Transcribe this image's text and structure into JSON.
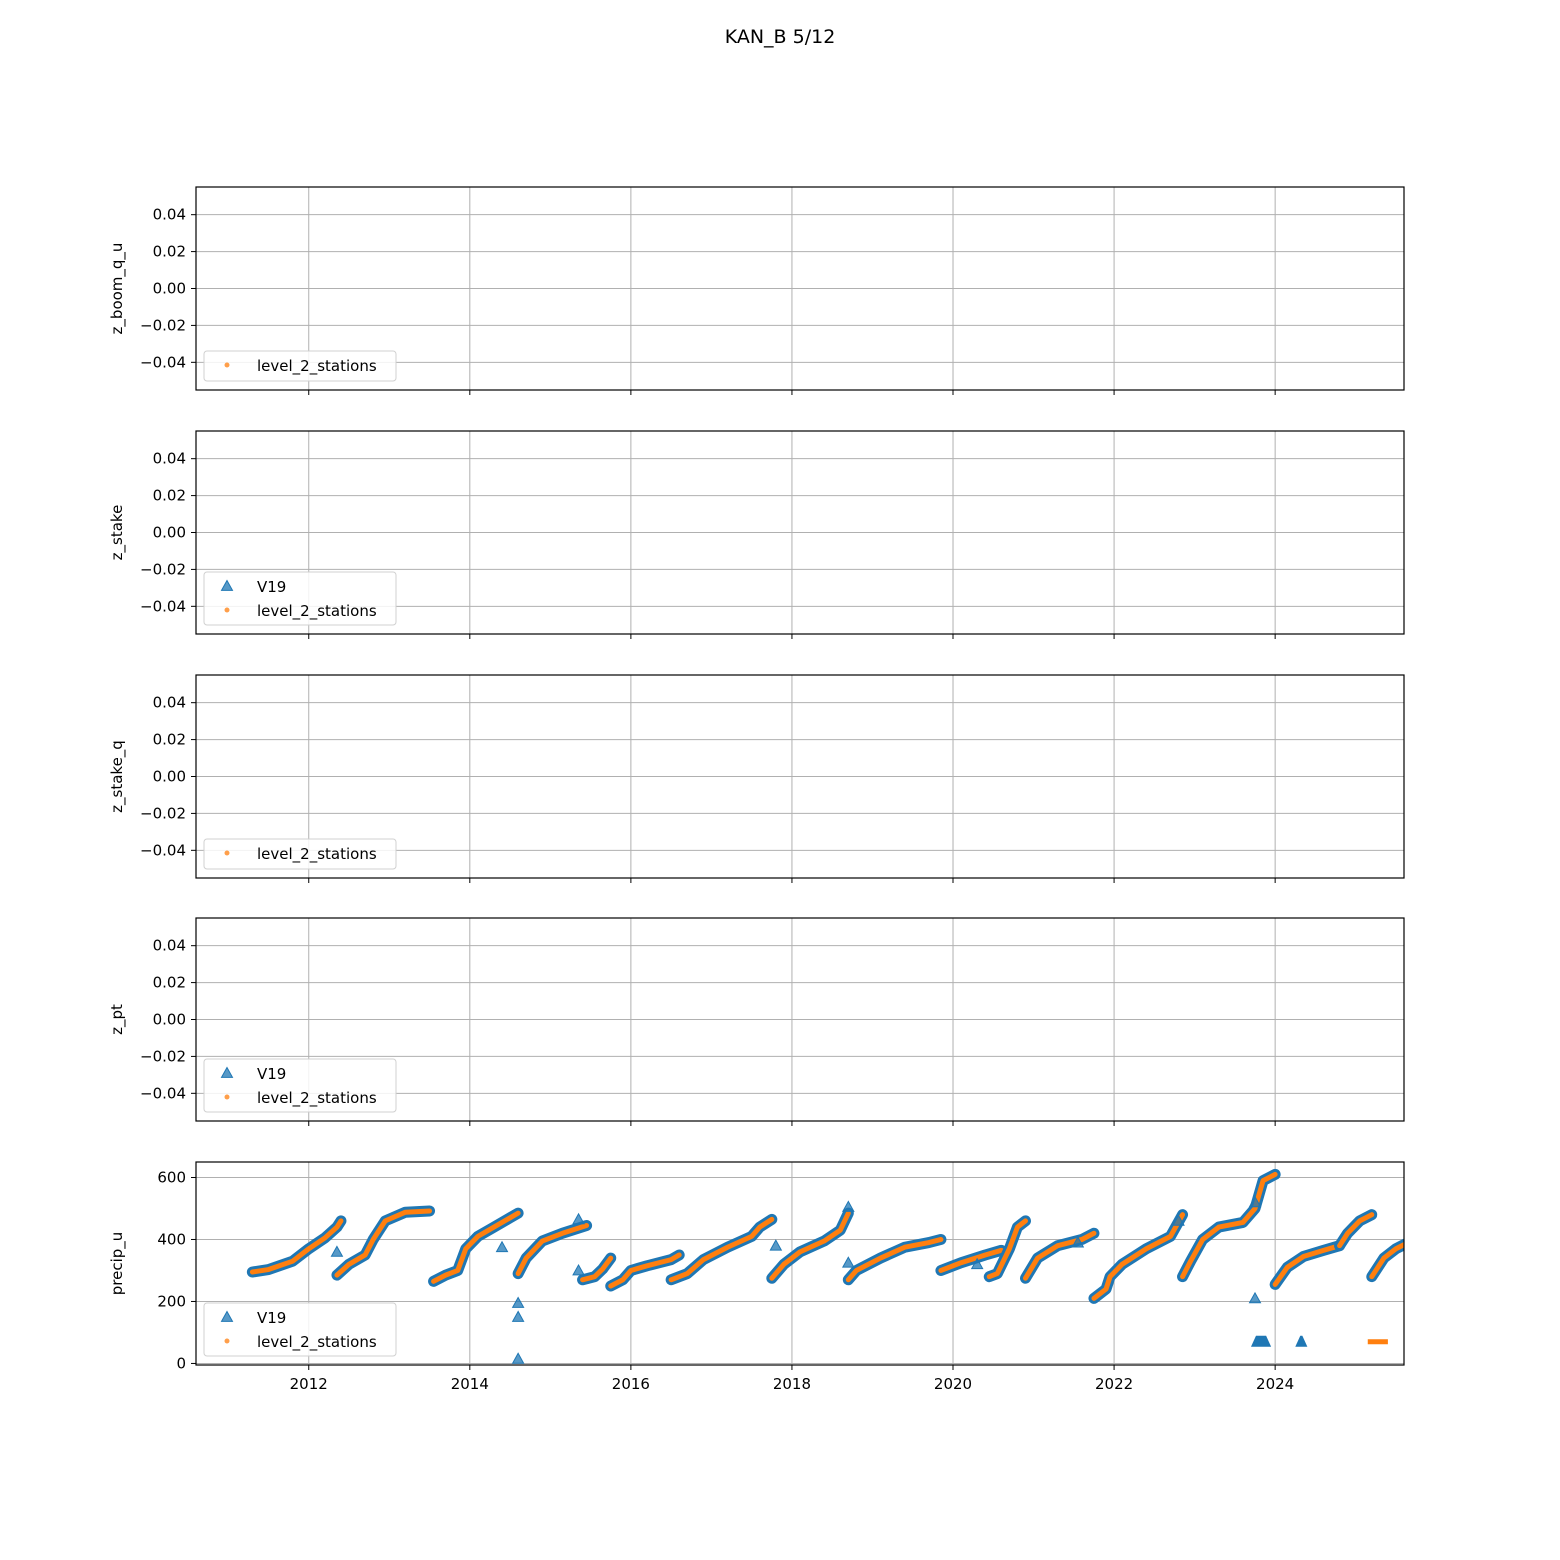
{
  "title": "KAN_B 5/12",
  "colors": {
    "V19": "#1f77b4",
    "level_2_stations": "#ff7f0e",
    "grid": "#b0b0b0",
    "axes": "#000000"
  },
  "chart_data": [
    {
      "type": "scatter",
      "ylabel": "z_boom_q_u",
      "ylim": [
        -0.055,
        0.055
      ],
      "yticks": [
        0.04,
        0.02,
        0.0,
        -0.02,
        -0.04
      ],
      "ytick_labels": [
        "0.04",
        "0.02",
        "0.00",
        "−0.02",
        "−0.04"
      ],
      "xlim": [
        2010.6,
        2025.6
      ],
      "xticks": [
        2012,
        2014,
        2016,
        2018,
        2020,
        2022,
        2024
      ],
      "grid": true,
      "legend": [
        "level_2_stations"
      ],
      "legend_loc": "lower left",
      "series": []
    },
    {
      "type": "scatter",
      "ylabel": "z_stake",
      "ylim": [
        -0.055,
        0.055
      ],
      "yticks": [
        0.04,
        0.02,
        0.0,
        -0.02,
        -0.04
      ],
      "ytick_labels": [
        "0.04",
        "0.02",
        "0.00",
        "−0.02",
        "−0.04"
      ],
      "xlim": [
        2010.6,
        2025.6
      ],
      "xticks": [
        2012,
        2014,
        2016,
        2018,
        2020,
        2022,
        2024
      ],
      "grid": true,
      "legend": [
        "V19",
        "level_2_stations"
      ],
      "legend_loc": "lower left",
      "series": []
    },
    {
      "type": "scatter",
      "ylabel": "z_stake_q",
      "ylim": [
        -0.055,
        0.055
      ],
      "yticks": [
        0.04,
        0.02,
        0.0,
        -0.02,
        -0.04
      ],
      "ytick_labels": [
        "0.04",
        "0.02",
        "0.00",
        "−0.02",
        "−0.04"
      ],
      "xlim": [
        2010.6,
        2025.6
      ],
      "xticks": [
        2012,
        2014,
        2016,
        2018,
        2020,
        2022,
        2024
      ],
      "grid": true,
      "legend": [
        "level_2_stations"
      ],
      "legend_loc": "lower left",
      "series": []
    },
    {
      "type": "scatter",
      "ylabel": "z_pt",
      "ylim": [
        -0.055,
        0.055
      ],
      "yticks": [
        0.04,
        0.02,
        0.0,
        -0.02,
        -0.04
      ],
      "ytick_labels": [
        "0.04",
        "0.02",
        "0.00",
        "−0.02",
        "−0.04"
      ],
      "xlim": [
        2010.6,
        2025.6
      ],
      "xticks": [
        2012,
        2014,
        2016,
        2018,
        2020,
        2022,
        2024
      ],
      "grid": true,
      "legend": [
        "V19",
        "level_2_stations"
      ],
      "legend_loc": "lower left",
      "series": []
    },
    {
      "type": "scatter",
      "ylabel": "precip_u",
      "ylim": [
        -5,
        650
      ],
      "yticks": [
        0,
        200,
        400,
        600
      ],
      "ytick_labels": [
        "0",
        "200",
        "400",
        "600"
      ],
      "xlim": [
        2010.6,
        2025.6
      ],
      "xticks": [
        2012,
        2014,
        2016,
        2018,
        2020,
        2022,
        2024
      ],
      "xtick_labels": [
        "2012",
        "2014",
        "2016",
        "2018",
        "2020",
        "2022",
        "2024"
      ],
      "grid": true,
      "legend": [
        "V19",
        "level_2_stations"
      ],
      "legend_loc": "lower left",
      "series": [
        {
          "name": "level_2_stations",
          "segments": [
            [
              [
                2011.3,
                295
              ],
              [
                2011.5,
                303
              ],
              [
                2011.8,
                330
              ],
              [
                2012.0,
                370
              ],
              [
                2012.2,
                405
              ],
              [
                2012.35,
                440
              ],
              [
                2012.4,
                460
              ]
            ],
            [
              [
                2012.35,
                285
              ],
              [
                2012.5,
                320
              ],
              [
                2012.7,
                350
              ],
              [
                2012.8,
                400
              ],
              [
                2012.95,
                460
              ],
              [
                2013.2,
                488
              ],
              [
                2013.5,
                492
              ]
            ],
            [
              [
                2013.55,
                265
              ],
              [
                2013.7,
                285
              ],
              [
                2013.85,
                300
              ],
              [
                2013.95,
                370
              ],
              [
                2014.1,
                410
              ],
              [
                2014.3,
                440
              ],
              [
                2014.5,
                470
              ],
              [
                2014.6,
                485
              ]
            ],
            [
              [
                2014.6,
                290
              ],
              [
                2014.7,
                340
              ],
              [
                2014.9,
                395
              ],
              [
                2015.15,
                420
              ],
              [
                2015.45,
                445
              ]
            ],
            [
              [
                2015.4,
                270
              ],
              [
                2015.55,
                280
              ],
              [
                2015.65,
                305
              ],
              [
                2015.75,
                340
              ]
            ],
            [
              [
                2015.75,
                250
              ],
              [
                2015.9,
                270
              ],
              [
                2016.0,
                300
              ],
              [
                2016.2,
                315
              ],
              [
                2016.5,
                335
              ],
              [
                2016.6,
                350
              ]
            ],
            [
              [
                2016.5,
                270
              ],
              [
                2016.7,
                290
              ],
              [
                2016.9,
                335
              ],
              [
                2017.2,
                375
              ],
              [
                2017.5,
                410
              ],
              [
                2017.6,
                440
              ],
              [
                2017.75,
                465
              ]
            ],
            [
              [
                2017.75,
                275
              ],
              [
                2017.9,
                320
              ],
              [
                2018.1,
                360
              ],
              [
                2018.4,
                395
              ],
              [
                2018.6,
                430
              ],
              [
                2018.7,
                485
              ]
            ],
            [
              [
                2018.7,
                270
              ],
              [
                2018.8,
                300
              ],
              [
                2019.1,
                340
              ],
              [
                2019.4,
                375
              ],
              [
                2019.7,
                390
              ],
              [
                2019.85,
                400
              ]
            ],
            [
              [
                2019.85,
                300
              ],
              [
                2020.1,
                325
              ],
              [
                2020.4,
                350
              ],
              [
                2020.6,
                365
              ]
            ],
            [
              [
                2020.45,
                280
              ],
              [
                2020.55,
                290
              ],
              [
                2020.7,
                370
              ],
              [
                2020.8,
                440
              ],
              [
                2020.9,
                460
              ]
            ],
            [
              [
                2020.9,
                275
              ],
              [
                2021.05,
                340
              ],
              [
                2021.3,
                380
              ],
              [
                2021.6,
                400
              ],
              [
                2021.75,
                420
              ]
            ],
            [
              [
                2021.75,
                210
              ],
              [
                2021.9,
                240
              ],
              [
                2021.95,
                280
              ],
              [
                2022.1,
                320
              ],
              [
                2022.4,
                370
              ],
              [
                2022.7,
                410
              ],
              [
                2022.85,
                480
              ]
            ],
            [
              [
                2022.85,
                280
              ],
              [
                2022.95,
                330
              ],
              [
                2023.1,
                400
              ],
              [
                2023.3,
                440
              ],
              [
                2023.6,
                455
              ],
              [
                2023.75,
                500
              ],
              [
                2023.85,
                590
              ],
              [
                2024.0,
                610
              ]
            ],
            [
              [
                2024.0,
                255
              ],
              [
                2024.15,
                310
              ],
              [
                2024.35,
                345
              ],
              [
                2024.6,
                365
              ],
              [
                2024.8,
                380
              ]
            ],
            [
              [
                2024.8,
                380
              ],
              [
                2024.9,
                420
              ],
              [
                2025.05,
                460
              ],
              [
                2025.2,
                480
              ]
            ],
            [
              [
                2025.2,
                280
              ],
              [
                2025.35,
                340
              ],
              [
                2025.5,
                370
              ],
              [
                2025.65,
                390
              ]
            ]
          ]
        },
        {
          "name": "V19",
          "points": [
            [
              2012.35,
              360
            ],
            [
              2014.4,
              375
            ],
            [
              2014.6,
              195
            ],
            [
              2014.6,
              150
            ],
            [
              2014.6,
              15
            ],
            [
              2015.35,
              465
            ],
            [
              2015.35,
              300
            ],
            [
              2017.8,
              380
            ],
            [
              2018.7,
              325
            ],
            [
              2018.7,
              505
            ],
            [
              2020.3,
              320
            ],
            [
              2021.55,
              390
            ],
            [
              2022.8,
              460
            ],
            [
              2023.75,
              520
            ],
            [
              2023.75,
              210
            ]
          ],
          "clusters": [
            [
              2023.7,
              2023.95,
              70
            ],
            [
              2024.25,
              2024.4,
              70
            ]
          ],
          "dashes": [
            [
              2025.15,
              2025.4,
              70
            ]
          ]
        }
      ]
    }
  ]
}
